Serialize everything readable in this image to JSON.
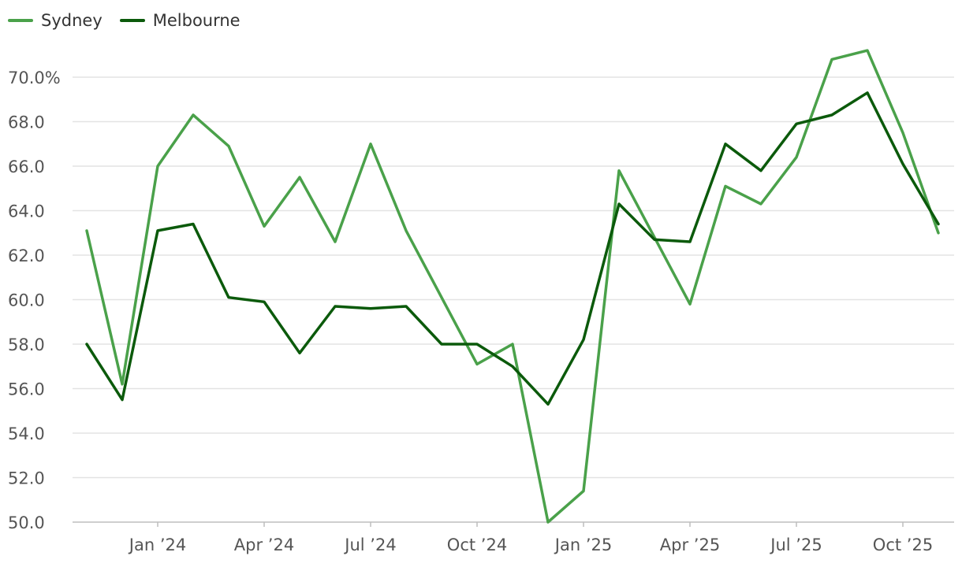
{
  "chart_data": {
    "type": "line",
    "title": "",
    "xlabel": "",
    "ylabel": "",
    "ylim": [
      50,
      70
    ],
    "y_ticks": [
      "50.0",
      "52.0",
      "54.0",
      "56.0",
      "58.0",
      "60.0",
      "62.0",
      "64.0",
      "66.0",
      "68.0",
      "70.0%"
    ],
    "y_tick_values": [
      50,
      52,
      54,
      56,
      58,
      60,
      62,
      64,
      66,
      68,
      70
    ],
    "x_tick_labels": [
      "Jan ’24",
      "Apr ’24",
      "Jul ’24",
      "Oct ’24",
      "Jan ’25",
      "Apr ’25",
      "Jul ’25",
      "Oct ’25"
    ],
    "x_tick_dates": [
      "2024-01",
      "2024-04",
      "2024-07",
      "2024-10",
      "2025-01",
      "2025-04",
      "2025-07",
      "2025-10"
    ],
    "x": [
      "2023-11",
      "2023-12",
      "2024-01",
      "2024-02",
      "2024-03",
      "2024-04",
      "2024-05",
      "2024-06",
      "2024-07",
      "2024-08",
      "2024-09",
      "2024-10",
      "2024-11",
      "2024-12",
      "2025-01",
      "2025-02",
      "2025-03",
      "2025-04",
      "2025-05",
      "2025-06",
      "2025-07",
      "2025-08",
      "2025-09",
      "2025-10",
      "2025-11"
    ],
    "grid": true,
    "legend_position": "top-left",
    "series": [
      {
        "name": "Sydney",
        "color": "#4aa14a",
        "values": [
          63.1,
          56.2,
          66.0,
          68.3,
          66.9,
          63.3,
          65.5,
          62.6,
          67.0,
          63.1,
          60.1,
          57.1,
          58.0,
          50.0,
          51.4,
          65.8,
          62.8,
          59.8,
          65.1,
          64.3,
          66.4,
          70.8,
          71.2,
          67.5,
          63.0
        ]
      },
      {
        "name": "Melbourne",
        "color": "#0b5a0b",
        "values": [
          58.0,
          55.5,
          63.1,
          63.4,
          60.1,
          59.9,
          57.6,
          59.7,
          59.6,
          59.7,
          58.0,
          58.0,
          57.0,
          55.3,
          58.2,
          64.3,
          62.7,
          62.6,
          67.0,
          65.8,
          67.9,
          68.3,
          69.3,
          66.1,
          63.4
        ]
      }
    ]
  }
}
